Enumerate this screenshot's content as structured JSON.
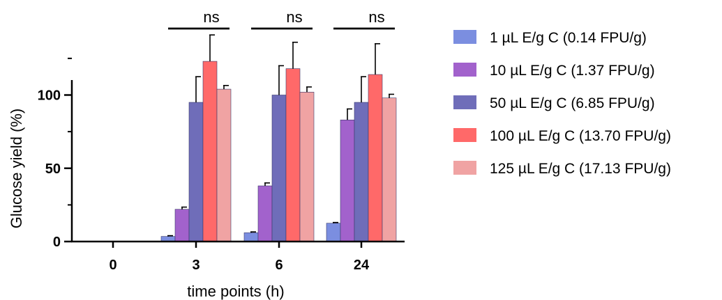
{
  "chart_data": {
    "type": "bar",
    "title": "",
    "xlabel": "time points (h)",
    "ylabel": "Glucose yield (%)",
    "ylim": [
      0,
      150
    ],
    "yticks": [
      "0",
      "50",
      "100"
    ],
    "categories": [
      "0",
      "3",
      "6",
      "24"
    ],
    "series": [
      {
        "name": "1 µL E/g C (0.14 FPU/g)",
        "color": "#7b8ee0",
        "values": [
          0,
          3.5,
          6,
          12.5
        ],
        "errors": [
          0,
          0.5,
          0.6,
          0.5
        ]
      },
      {
        "name": "10 µL E/g C (1.37 FPU/g)",
        "color": "#a262cc",
        "values": [
          0,
          22,
          38,
          83
        ],
        "errors": [
          0,
          1.5,
          2,
          7.5
        ]
      },
      {
        "name": "50 µL E/g C (6.85 FPU/g)",
        "color": "#6f6db9",
        "values": [
          0,
          95,
          100,
          95
        ],
        "errors": [
          0,
          17.5,
          20,
          17.5
        ]
      },
      {
        "name": "100 µL E/g C (13.70 FPU/g)",
        "color": "#ff6969",
        "values": [
          0,
          123,
          118,
          114
        ],
        "errors": [
          0,
          18,
          18,
          21
        ]
      },
      {
        "name": "125 µL E/g C (17.13 FPU/g)",
        "color": "#f0a3a3",
        "values": [
          0,
          104,
          102,
          98
        ],
        "errors": [
          0,
          2.5,
          3.5,
          2.5
        ]
      }
    ],
    "significance": [
      {
        "category": "3",
        "label": "ns"
      },
      {
        "category": "6",
        "label": "ns"
      },
      {
        "category": "24",
        "label": "ns"
      }
    ],
    "legend_position": "right",
    "grid": false
  }
}
